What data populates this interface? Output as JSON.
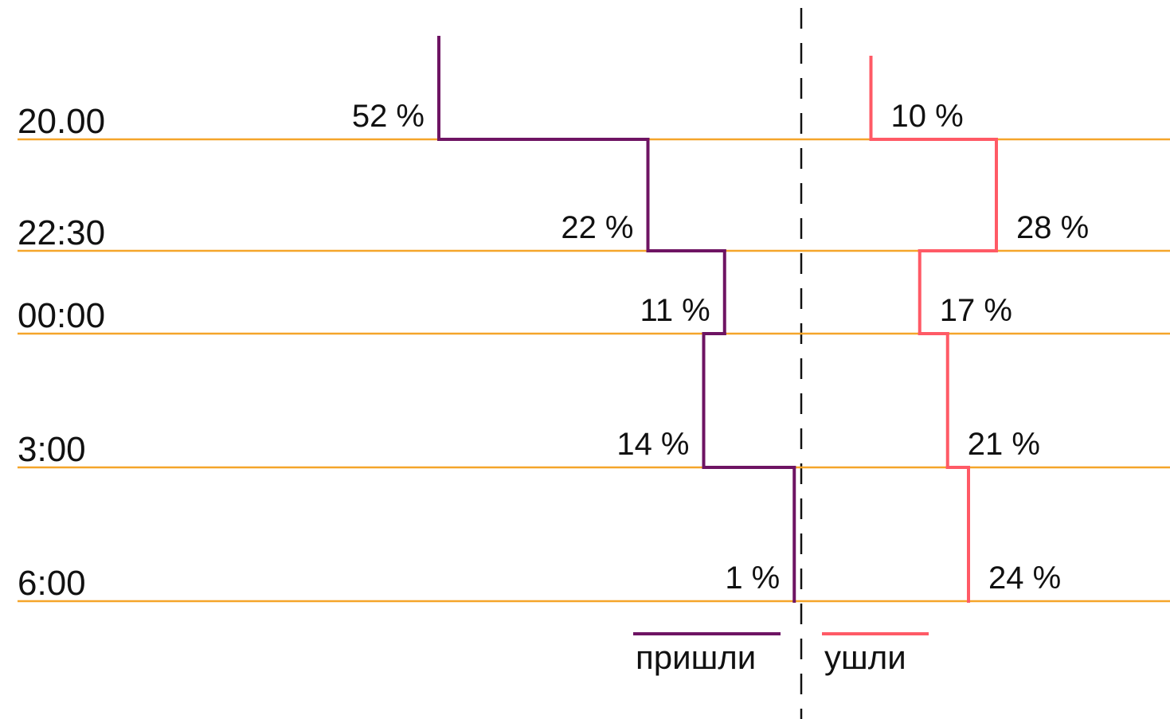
{
  "chart_data": {
    "type": "step",
    "categories": [
      "20.00",
      "22:30",
      "00:00",
      "3:00",
      "6:00"
    ],
    "series": [
      {
        "name": "пришли",
        "color": "#6e1463",
        "values": [
          52,
          22,
          11,
          14,
          1
        ],
        "value_labels": [
          "52 %",
          "22 %",
          "11 %",
          "14 %",
          "1 %"
        ]
      },
      {
        "name": "ушли",
        "color": "#ff5a66",
        "values": [
          10,
          28,
          17,
          21,
          24
        ],
        "value_labels": [
          "10 %",
          "28 %",
          "17 %",
          "21 %",
          "24 %"
        ]
      }
    ],
    "grid_color": "#f5a52a"
  }
}
